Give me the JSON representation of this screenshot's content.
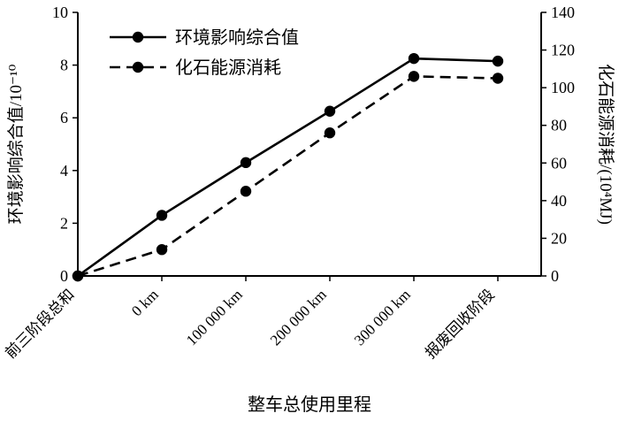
{
  "chart_data": {
    "type": "line",
    "title": "",
    "xlabel": "整车总使用里程",
    "categories": [
      "前三阶段总和",
      "0 km",
      "100 000 km",
      "200 000 km",
      "300 000 km",
      "报废回收阶段"
    ],
    "series": [
      {
        "name": "环境影响综合值",
        "axis": "left",
        "style": "solid",
        "values": [
          0,
          2.3,
          4.3,
          6.25,
          8.25,
          8.15
        ]
      },
      {
        "name": "化石能源消耗",
        "axis": "right",
        "style": "dashed",
        "values": [
          0,
          14,
          45,
          76,
          106,
          105
        ]
      }
    ],
    "left_axis": {
      "label": "环境影响综合值/10⁻¹⁰",
      "min": 0,
      "max": 10,
      "step": 2,
      "ticks": [
        "0",
        "2",
        "4",
        "6",
        "8",
        "10"
      ]
    },
    "right_axis": {
      "label": "化石能源消耗/(10⁴MJ)",
      "min": 0,
      "max": 140,
      "step": 20,
      "ticks": [
        "0",
        "20",
        "40",
        "60",
        "80",
        "100",
        "120",
        "140"
      ]
    },
    "legend": {
      "entries": [
        "环境影响综合值",
        "化石能源消耗"
      ],
      "position": "top-left-inside"
    },
    "grid": false,
    "colors": {
      "line": "#000000",
      "background": "#ffffff"
    }
  }
}
